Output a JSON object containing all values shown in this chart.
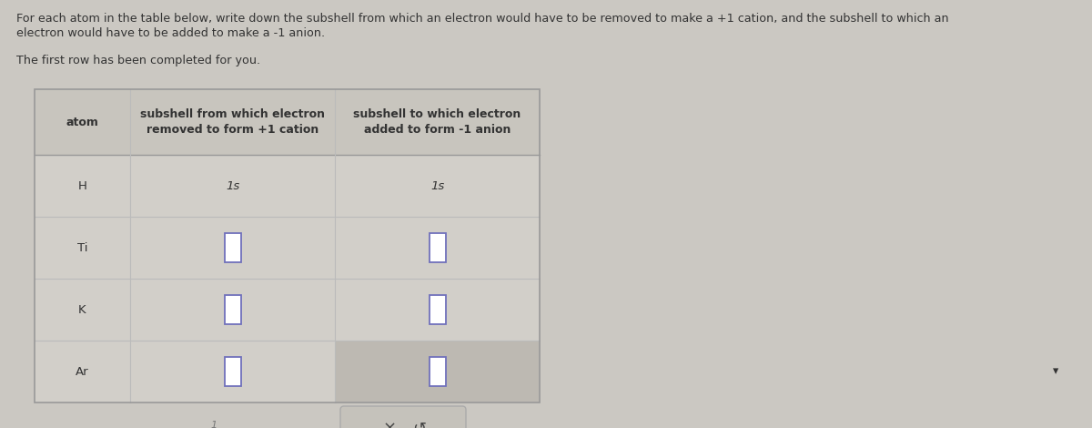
{
  "bg_color": "#cbc8c2",
  "title_text1": "For each atom in the table below, write down the subshell from which an electron would have to be removed to make a +1 cation, and the subshell to which an",
  "title_text2": "electron would have to be added to make a -1 anion.",
  "subtitle_text": "The first row has been completed for you.",
  "col_headers": [
    "atom",
    "subshell from which electron\nremoved to form +1 cation",
    "subshell to which electron\nadded to form -1 anion"
  ],
  "rows": [
    [
      "H",
      "1s",
      "1s"
    ],
    [
      "Ti",
      "",
      ""
    ],
    [
      "K",
      "",
      ""
    ],
    [
      "Ar",
      "",
      ""
    ]
  ],
  "box_color": "#7070bb",
  "text_color": "#333333",
  "header_text_color": "#333333",
  "table_border_color": "#999999",
  "row_line_color": "#bbbbbb",
  "header_bg": "#c8c5be",
  "row_bg": "#d2cfc9",
  "last_right_bg": "#bdb9b2",
  "font_size_title": 9.2,
  "font_size_header": 9.0,
  "font_size_cell": 9.5,
  "button_bg": "#c5c2bb",
  "button_border": "#aaaaaa"
}
